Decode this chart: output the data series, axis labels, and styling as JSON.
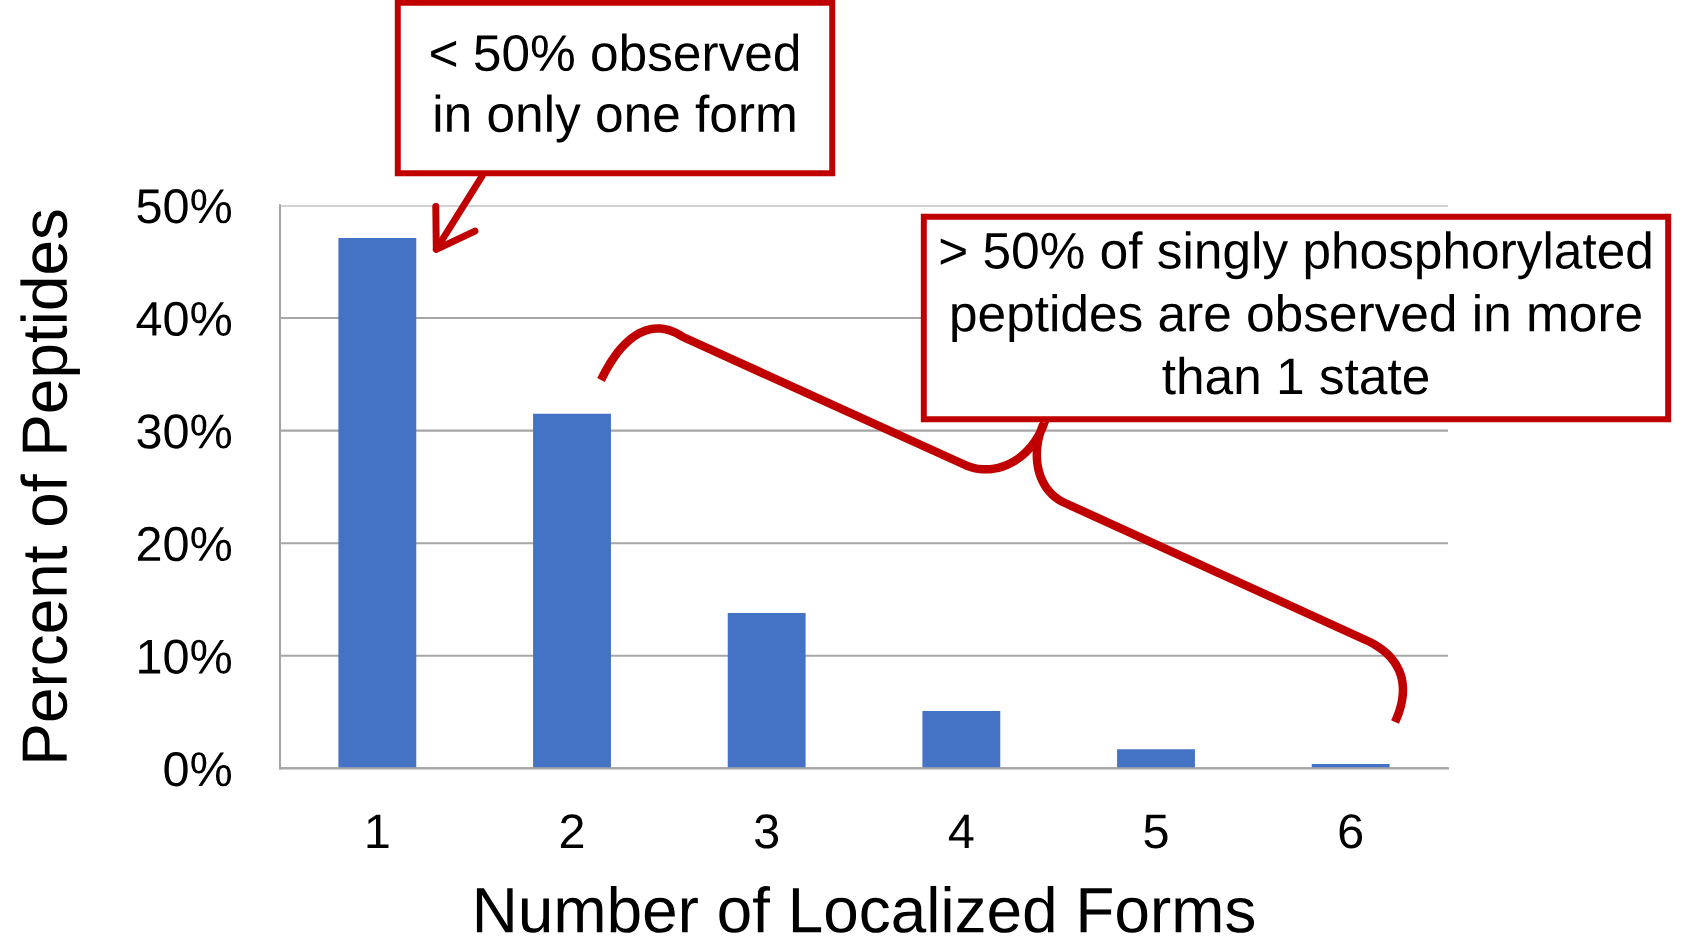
{
  "chart_data": {
    "type": "bar",
    "xlabel": "Number of Localized Forms",
    "ylabel": "Percent of Peptides",
    "categories": [
      "1",
      "2",
      "3",
      "4",
      "5",
      "6"
    ],
    "values": [
      47.1,
      31.5,
      13.8,
      5.1,
      1.7,
      0.4
    ],
    "color": "#4472c4",
    "ylim": [
      0,
      50
    ],
    "yticks": [
      {
        "value": 0,
        "label": "0%"
      },
      {
        "value": 10,
        "label": "10%"
      },
      {
        "value": 20,
        "label": "20%"
      },
      {
        "value": 30,
        "label": "30%"
      },
      {
        "value": 40,
        "label": "40%"
      },
      {
        "value": 50,
        "label": "50%"
      }
    ],
    "grid": "y",
    "annotations": [
      {
        "text": "< 50% observed\nin only one form",
        "x": "1",
        "y": 47.1
      },
      "> 50% of singly phosphorylated\npeptides are observed in more\nthan 1 state"
    ]
  }
}
